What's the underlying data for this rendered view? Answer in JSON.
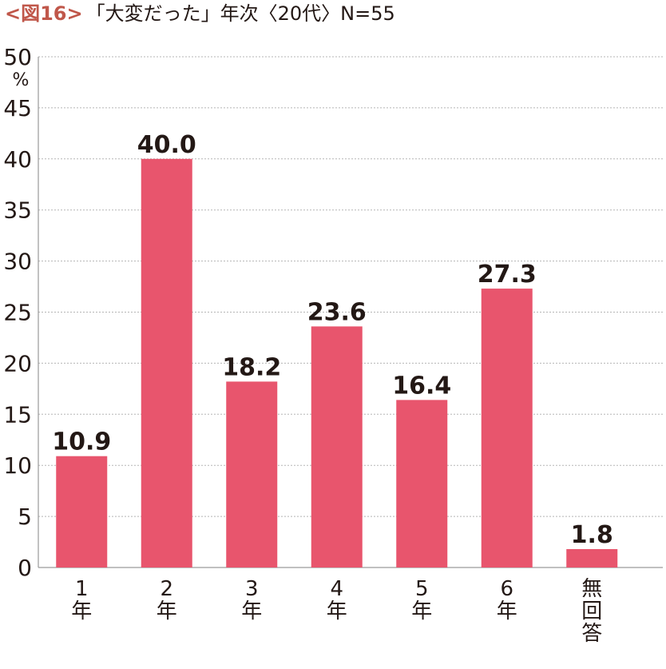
{
  "figure": {
    "number": "<図16>",
    "title": "「大変だった」年次〈20代〉N=55"
  },
  "colors": {
    "bar": "#e8556d",
    "grid": "#b5b5b5",
    "axis": "#9a9a9a",
    "text": "#231815",
    "figure_number": "#c0574a"
  },
  "chart_data": {
    "type": "bar",
    "categories": [
      "1\n年",
      "2\n年",
      "3\n年",
      "4\n年",
      "5\n年",
      "6\n年",
      "無\n回\n答"
    ],
    "values": [
      10.9,
      40.0,
      18.2,
      23.6,
      16.4,
      27.3,
      1.8
    ],
    "value_labels": [
      "10.9",
      "40.0",
      "18.2",
      "23.6",
      "16.4",
      "27.3",
      "1.8"
    ],
    "yunit": "%",
    "ylim": [
      0,
      50
    ],
    "yticks": [
      0,
      5,
      10,
      15,
      20,
      25,
      30,
      35,
      40,
      45,
      50
    ],
    "grid": true,
    "legend": "none"
  }
}
